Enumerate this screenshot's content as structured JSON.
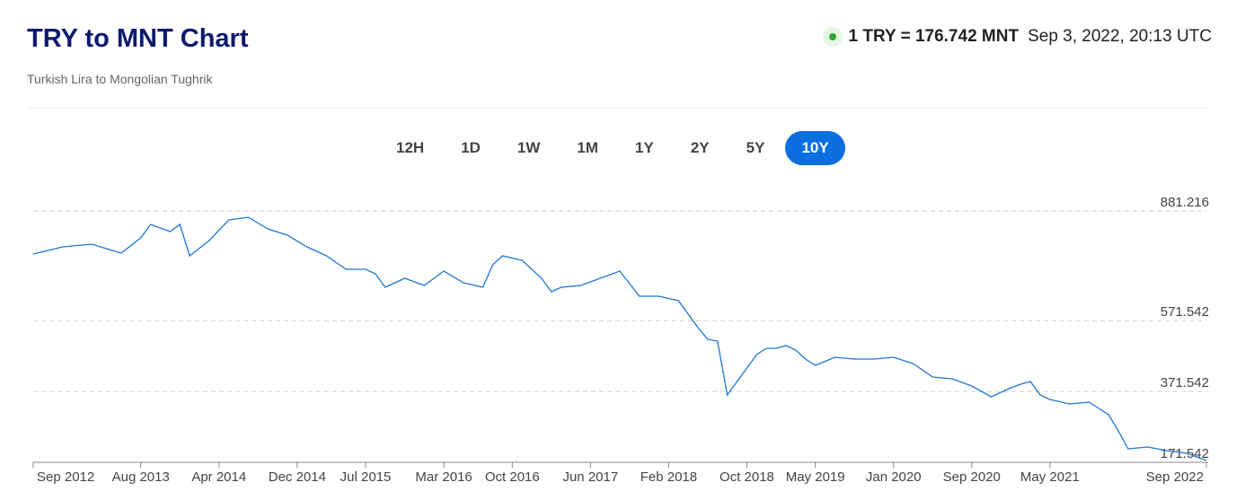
{
  "header": {
    "title": "TRY to MNT Chart",
    "subtitle": "Turkish Lira to Mongolian Tughrik",
    "rate": "1 TRY = 176.742 MNT",
    "timestamp": "Sep 3, 2022, 20:13 UTC"
  },
  "range_buttons": [
    {
      "label": "12H",
      "selected": false
    },
    {
      "label": "1D",
      "selected": false
    },
    {
      "label": "1W",
      "selected": false
    },
    {
      "label": "1M",
      "selected": false
    },
    {
      "label": "1Y",
      "selected": false
    },
    {
      "label": "2Y",
      "selected": false
    },
    {
      "label": "5Y",
      "selected": false
    },
    {
      "label": "10Y",
      "selected": true
    }
  ],
  "chart_data": {
    "type": "line",
    "color": "#1f77d0",
    "grid": true,
    "x": [
      "2012-09",
      "2012-12",
      "2013-03",
      "2013-06",
      "2013-08",
      "2013-09",
      "2013-11",
      "2013-12",
      "2014-01",
      "2014-03",
      "2014-05",
      "2014-07",
      "2014-09",
      "2014-11",
      "2015-01",
      "2015-03",
      "2015-05",
      "2015-07",
      "2015-08",
      "2015-09",
      "2015-11",
      "2016-01",
      "2016-03",
      "2016-05",
      "2016-07",
      "2016-08",
      "2016-09",
      "2016-11",
      "2017-01",
      "2017-02",
      "2017-03",
      "2017-05",
      "2017-07",
      "2017-09",
      "2017-11",
      "2018-01",
      "2018-03",
      "2018-05",
      "2018-06",
      "2018-07",
      "2018-08",
      "2018-09",
      "2018-10",
      "2018-11",
      "2018-12",
      "2019-01",
      "2019-02",
      "2019-03",
      "2019-04",
      "2019-05",
      "2019-07",
      "2019-09",
      "2019-11",
      "2020-01",
      "2020-03",
      "2020-05",
      "2020-07",
      "2020-09",
      "2020-11",
      "2021-01",
      "2021-02",
      "2021-03",
      "2021-04",
      "2021-05",
      "2021-07",
      "2021-09",
      "2021-11",
      "2021-12",
      "2022-01",
      "2022-03",
      "2022-05",
      "2022-07",
      "2022-09"
    ],
    "values": [
      759.5,
      779.8,
      787.4,
      762.1,
      805.2,
      843.2,
      822.9,
      843.2,
      754.5,
      797.6,
      855.9,
      863.5,
      830.5,
      812.8,
      779.8,
      754.5,
      716.5,
      716.5,
      703.8,
      665.8,
      691.1,
      670.8,
      711.4,
      678.4,
      665.8,
      729.1,
      754.5,
      741.8,
      691.1,
      653.1,
      665.8,
      670.8,
      691.1,
      711.4,
      640.4,
      640.4,
      627.8,
      551.7,
      518.8,
      513.7,
      361.6,
      399.6,
      437.7,
      475.7,
      493.4,
      493.4,
      501.0,
      488.4,
      463.0,
      445.3,
      468.1,
      463.0,
      463.0,
      468.1,
      450.3,
      412.3,
      407.3,
      387.0,
      356.6,
      381.9,
      392.0,
      399.6,
      361.6,
      349.0,
      336.3,
      341.4,
      305.9,
      260.2,
      209.6,
      214.6,
      204.5,
      196.9,
      176.742
    ],
    "xlim": [
      "2012-09",
      "2022-09"
    ],
    "xticks": [
      {
        "value": "2012-09",
        "label": "Sep 2012"
      },
      {
        "value": "2013-08",
        "label": "Aug 2013"
      },
      {
        "value": "2014-04",
        "label": "Apr 2014"
      },
      {
        "value": "2014-12",
        "label": "Dec 2014"
      },
      {
        "value": "2015-07",
        "label": "Jul 2015"
      },
      {
        "value": "2016-03",
        "label": "Mar 2016"
      },
      {
        "value": "2016-10",
        "label": "Oct 2016"
      },
      {
        "value": "2017-06",
        "label": "Jun 2017"
      },
      {
        "value": "2018-02",
        "label": "Feb 2018"
      },
      {
        "value": "2018-10",
        "label": "Oct 2018"
      },
      {
        "value": "2019-05",
        "label": "May 2019"
      },
      {
        "value": "2020-01",
        "label": "Jan 2020"
      },
      {
        "value": "2020-09",
        "label": "Sep 2020"
      },
      {
        "value": "2021-05",
        "label": "May 2021"
      },
      {
        "value": "2022-09",
        "label": "Sep 2022"
      }
    ],
    "ylim": [
      171.542,
      881.216
    ],
    "yticks": [
      171.542,
      371.542,
      571.542,
      881.216
    ]
  }
}
